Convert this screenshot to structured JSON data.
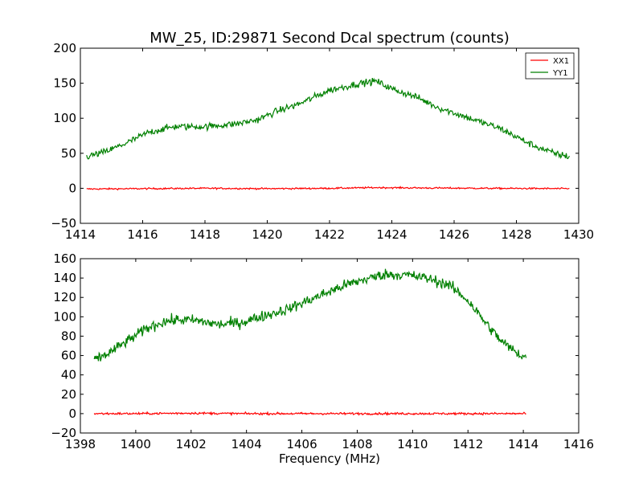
{
  "figure": {
    "title": "MW_25, ID:29871 Second Dcal spectrum (counts)"
  },
  "chart_data": [
    {
      "type": "line",
      "title": "MW_25, ID:29871 Second Dcal spectrum (counts)",
      "xlabel": "",
      "ylabel": "",
      "xlim": [
        1414,
        1430
      ],
      "ylim": [
        -50,
        200
      ],
      "xticks": [
        "1414",
        "1416",
        "1418",
        "1420",
        "1422",
        "1424",
        "1426",
        "1428",
        "1430"
      ],
      "yticks": [
        "200",
        "150",
        "100",
        "50",
        "0",
        "−50"
      ],
      "x_range": [
        1414.2,
        1429.7
      ],
      "legend": {
        "placement": "top-right",
        "entries": [
          "XX1",
          "YY1"
        ]
      },
      "series": [
        {
          "name": "XX1",
          "color": "#ff0000",
          "noise": 0.8,
          "x": [
            1414.2,
            1416,
            1418,
            1420,
            1422,
            1423.5,
            1425,
            1427,
            1429.7
          ],
          "values": [
            -1,
            -0.5,
            0,
            -0.5,
            0,
            1,
            0.5,
            0,
            -0.5
          ]
        },
        {
          "name": "YY1",
          "color": "#008000",
          "noise": 3.5,
          "x": [
            1414.2,
            1414.8,
            1415.5,
            1416.2,
            1417,
            1418,
            1419,
            1419.7,
            1420.3,
            1421,
            1422,
            1423,
            1423.5,
            1424,
            1424.8,
            1425.5,
            1426.5,
            1427.5,
            1428.5,
            1429.2,
            1429.7
          ],
          "values": [
            45,
            52,
            65,
            80,
            88,
            88,
            92,
            98,
            110,
            120,
            140,
            150,
            153,
            142,
            130,
            115,
            100,
            85,
            62,
            50,
            45
          ]
        }
      ]
    },
    {
      "type": "line",
      "title": "",
      "xlabel": "Frequency (MHz)",
      "ylabel": "",
      "xlim": [
        1398,
        1416
      ],
      "ylim": [
        -20,
        160
      ],
      "xticks": [
        "1398",
        "1400",
        "1402",
        "1404",
        "1406",
        "1408",
        "1410",
        "1412",
        "1414",
        "1416"
      ],
      "yticks": [
        "160",
        "140",
        "120",
        "100",
        "80",
        "60",
        "40",
        "20",
        "0",
        "−20"
      ],
      "x_range": [
        1398.5,
        1414.1
      ],
      "series": [
        {
          "name": "XX1",
          "color": "#ff0000",
          "noise": 0.8,
          "x": [
            1398.5,
            1400,
            1402,
            1404,
            1406,
            1408,
            1410,
            1412,
            1414.1
          ],
          "values": [
            0,
            0,
            0.5,
            0,
            0,
            0,
            0,
            0,
            0
          ]
        },
        {
          "name": "YY1",
          "color": "#008000",
          "noise": 4.0,
          "x": [
            1398.5,
            1399,
            1399.7,
            1400.4,
            1401,
            1401.6,
            1402.2,
            1403,
            1403.8,
            1404.5,
            1405.5,
            1406.5,
            1407.5,
            1408.2,
            1409,
            1409.8,
            1410.5,
            1411.3,
            1412,
            1412.6,
            1413.2,
            1413.7,
            1414.1
          ],
          "values": [
            55,
            62,
            75,
            88,
            95,
            97,
            96,
            92,
            94,
            100,
            108,
            120,
            132,
            138,
            144,
            143,
            140,
            133,
            117,
            95,
            75,
            64,
            58
          ]
        }
      ]
    }
  ]
}
